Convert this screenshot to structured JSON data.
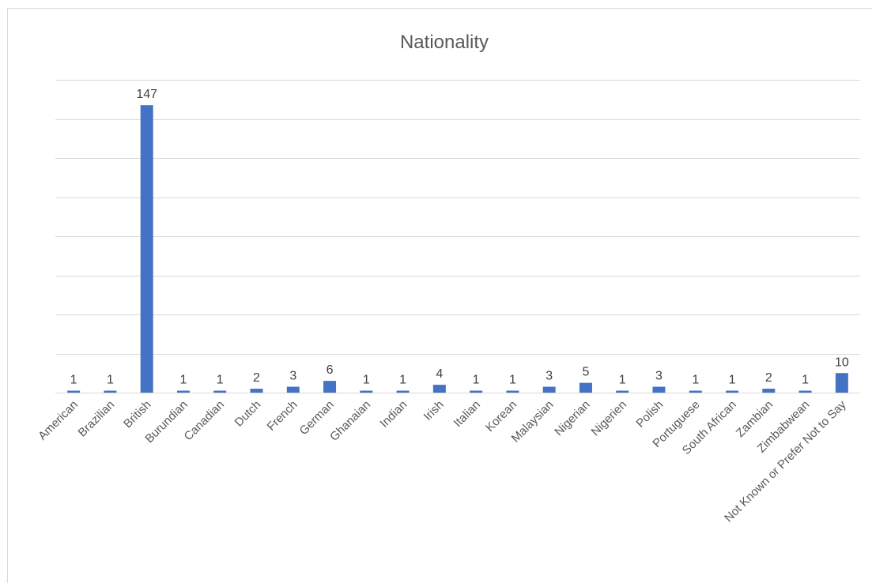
{
  "chart_data": {
    "type": "bar",
    "title": "Nationality",
    "xlabel": "",
    "ylabel": "",
    "ylim": [
      0,
      160
    ],
    "grid": true,
    "legend": "none",
    "bar_color": "#4472c4",
    "categories": [
      "American",
      "Brazilian",
      "British",
      "Burundian",
      "Canadian",
      "Dutch",
      "French",
      "German",
      "Ghanaian",
      "Indian",
      "Irish",
      "Italian",
      "Korean",
      "Malaysian",
      "Nigerian",
      "Nigerien",
      "Polish",
      "Portuguese",
      "South African",
      "Zambian",
      "Zimbabwean",
      "Not Known or Prefer Not to Say"
    ],
    "values": [
      1,
      1,
      147,
      1,
      1,
      2,
      3,
      6,
      1,
      1,
      4,
      1,
      1,
      3,
      5,
      1,
      3,
      1,
      1,
      2,
      1,
      10
    ]
  }
}
